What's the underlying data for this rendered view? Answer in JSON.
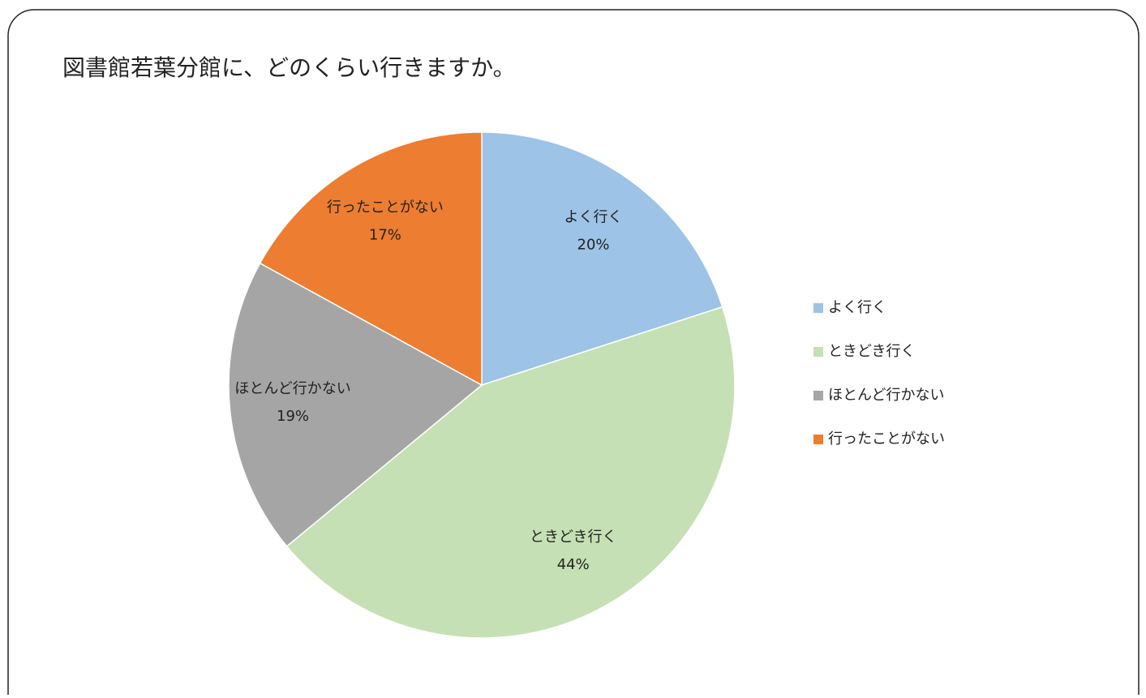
{
  "chart_data": {
    "type": "pie",
    "title": "図書館若葉分館に、どのくらい行きますか。",
    "categories": [
      "よく行く",
      "ときどき行く",
      "ほとんど行かない",
      "行ったことがない"
    ],
    "values": [
      20,
      44,
      19,
      17
    ],
    "value_labels": [
      "20%",
      "44%",
      "19%",
      "17%"
    ],
    "colors": [
      "#9dc3e6",
      "#c5e0b4",
      "#a5a5a5",
      "#ed7d31"
    ],
    "legend": "right"
  }
}
